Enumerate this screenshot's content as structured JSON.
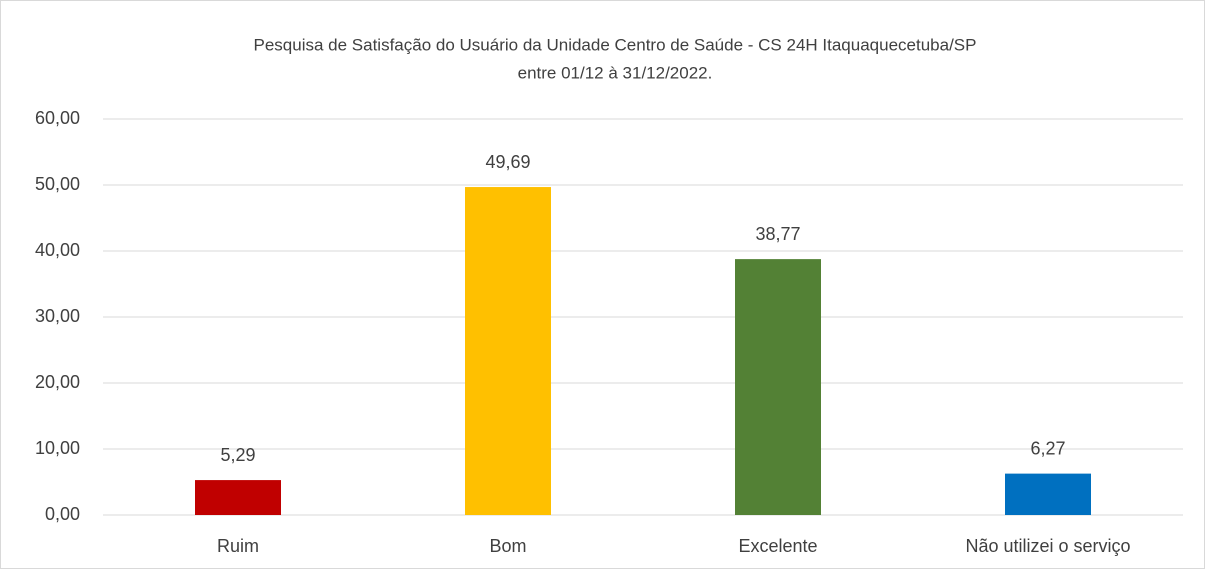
{
  "chart_data": {
    "type": "bar",
    "title": "Pesquisa de Satisfação do Usuário da Unidade Centro de Saúde - CS 24H  Itaquaquecetuba/SP",
    "subtitle": "entre 01/12 à 31/12/2022.",
    "categories": [
      "Ruim",
      "Bom",
      "Excelente",
      "Não utilizei o serviço"
    ],
    "values": [
      5.29,
      49.69,
      38.77,
      6.27
    ],
    "value_labels": [
      "5,29",
      "49,69",
      "38,77",
      "6,27"
    ],
    "colors": [
      "#c00000",
      "#ffc000",
      "#538135",
      "#0070c0"
    ],
    "ylim": [
      0,
      60
    ],
    "yticks": [
      {
        "value": 0,
        "label": "0,00"
      },
      {
        "value": 10,
        "label": "10,00"
      },
      {
        "value": 20,
        "label": "20,00"
      },
      {
        "value": 30,
        "label": "30,00"
      },
      {
        "value": 40,
        "label": "40,00"
      },
      {
        "value": 50,
        "label": "50,00"
      },
      {
        "value": 60,
        "label": "60,00"
      }
    ],
    "grid": true
  }
}
